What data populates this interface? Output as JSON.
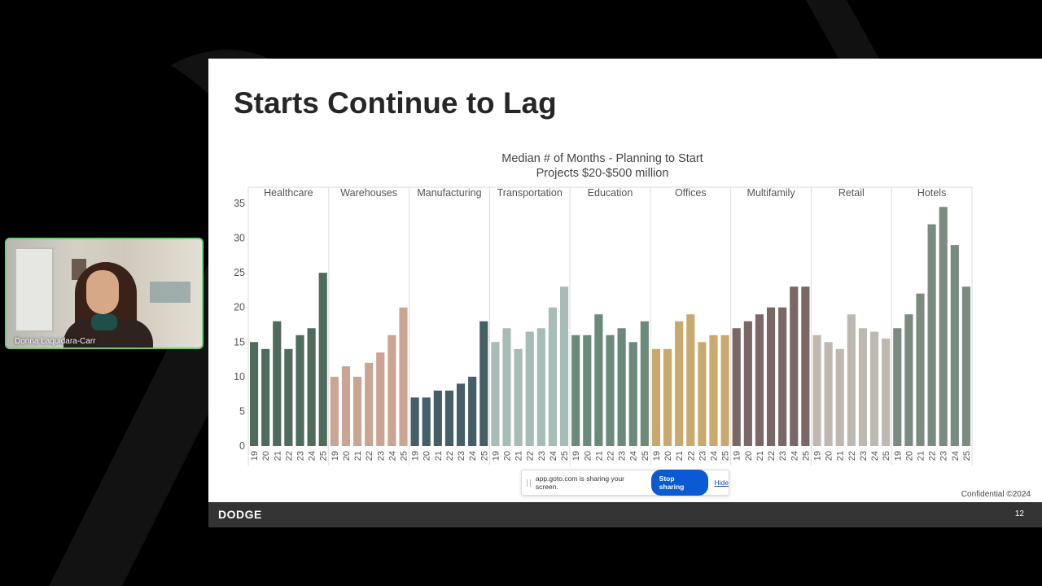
{
  "presenter": {
    "name": "Donna Laquidara-Carr"
  },
  "slide": {
    "title": "Starts Continue to Lag",
    "logo": "DODGE",
    "page_number": "12",
    "confidential": "Confidential ©2024"
  },
  "share_bar": {
    "message": "app.goto.com is sharing your screen.",
    "stop_label": "Stop sharing",
    "hide_label": "Hide"
  },
  "chart_data": {
    "type": "bar",
    "title_lines": [
      "Median # of Months - Planning to Start",
      "Projects $20-$500 million"
    ],
    "ylim": [
      0,
      35
    ],
    "yticks": [
      0,
      5,
      10,
      15,
      20,
      25,
      30,
      35
    ],
    "categories": [
      "19",
      "20",
      "21",
      "22",
      "23",
      "24",
      "25"
    ],
    "grid": false,
    "series": [
      {
        "name": "Healthcare",
        "color": "#4e6b5c",
        "values": [
          15,
          14,
          18,
          14,
          16,
          17,
          25
        ]
      },
      {
        "name": "Warehouses",
        "color": "#caa593",
        "values": [
          10,
          11.5,
          10,
          12,
          13.5,
          16,
          20
        ]
      },
      {
        "name": "Manufacturing",
        "color": "#455e68",
        "values": [
          7,
          7,
          8,
          8,
          9,
          10,
          18
        ]
      },
      {
        "name": "Transportation",
        "color": "#a6bcb6",
        "values": [
          15,
          17,
          14,
          16.5,
          17,
          20,
          23
        ]
      },
      {
        "name": "Education",
        "color": "#6b8a7a",
        "values": [
          16,
          16,
          19,
          16,
          17,
          15,
          18
        ]
      },
      {
        "name": "Offices",
        "color": "#c9a96e",
        "values": [
          14,
          14,
          18,
          19,
          15,
          16,
          16
        ]
      },
      {
        "name": "Multifamily",
        "color": "#7a6766",
        "values": [
          17,
          18,
          19,
          20,
          20,
          23,
          23
        ]
      },
      {
        "name": "Retail",
        "color": "#bfb8b0",
        "values": [
          16,
          15,
          14,
          19,
          17,
          16.5,
          15.5
        ]
      },
      {
        "name": "Hotels",
        "color": "#7a8b80",
        "values": [
          17,
          19,
          22,
          32,
          34.5,
          29,
          23
        ]
      }
    ]
  }
}
